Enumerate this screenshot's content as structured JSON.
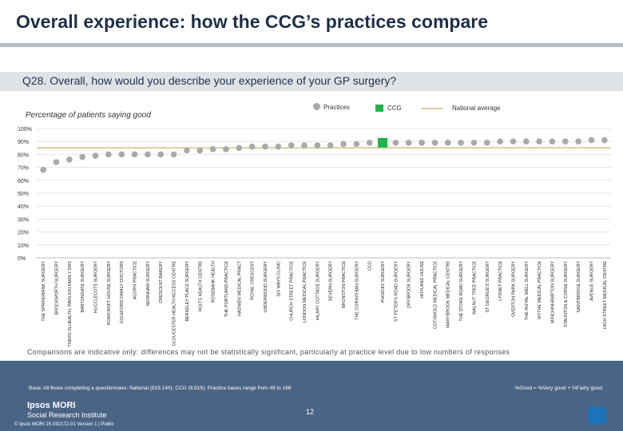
{
  "slide": {
    "title": "Overall experience: how the CCG’s practices compare",
    "question": "Q28. Overall, how would you describe your experience of your GP surgery?",
    "subtitle": "Percentage of patients saying good",
    "footnote": "Comparisons are indicative only: differences may not be statistically significant, particularly at practice level due to low numbers of responses",
    "base": "Base: All those completing a questionnaire: National (819,140); CCG (9,919); Practice bases range from 49 to 168",
    "good_definition": "%Good = %Very good + %Fairly good",
    "page_number": "12",
    "brand_name": "Ipsos MORI",
    "brand_sub": "Social Research Institute",
    "copyright": "© Ipsos MORI     15-032172-01 Version 1 | Public"
  },
  "legend": {
    "practices": "Practices",
    "ccg": "CCG",
    "national": "National average"
  },
  "colors": {
    "practice_dot": "#a9a9a9",
    "ccg": "#22b24c",
    "national_line": "#d8cfa0",
    "band": "#4a6485"
  },
  "chart_data": {
    "type": "scatter",
    "title": "Percentage of patients saying good",
    "ylabel": "",
    "ylim": [
      0,
      100
    ],
    "yticks": [
      "0%",
      "10%",
      "20%",
      "30%",
      "40%",
      "50%",
      "60%",
      "70%",
      "80%",
      "90%",
      "100%"
    ],
    "national_average": 85,
    "ccg_index": 26,
    "categories": [
      "THE SPRINGBANK SURGERY",
      "BROCKWORTH SURGERY",
      "PARTNERS IN HEALTH, PAVILION FAMILY DRS",
      "BARTONGATE SURGERY",
      "HUCCLECOTE SURGERY",
      "ROWCROFT HOUSE SURGERY",
      "COLEFORD FAMILY DOCTORS",
      "ACORN PRACTICE",
      "NEWNHAM SURGERY",
      "CRESCENT BAKERY",
      "GLOUCESTER HEALTH ACCESS CENTRE",
      "BERKELEY PLACE SURGERY",
      "HOLTS HEALTH CENTRE",
      "ROSEBANK HEALTH",
      "THE PORTLAND PRACTICE",
      "HADWEN MEDICAL PRACT",
      "ROYAL CRESCENT",
      "UNDERWOOD SURGERY",
      "SIX WAYS CLINIC",
      "CHURCH STREET PRACTICE",
      "LONDON MEDICAL PRACTICE",
      "HILARY COTTAGE SURGERY",
      "SEVERN SURGERY",
      "BRUNSTON PRACTICE",
      "THE CORINTHIAN SURGERY",
      "CCG",
      "PHOENIX SURGERY",
      "ST PETER'S ROAD SURGERY",
      "DRYBROOK SURGERY",
      "HOYLAND HOUSE",
      "COTSWOLD MEDICAL PRACTICE",
      "MARYBROOK MEDICAL CENTRE",
      "THE STOKE ROAD SURGERY",
      "WALNUT TREE PRACTICE",
      "ST GEORGE'S SURGERY",
      "LYDNEY PRACTICE",
      "OVERTON PARK SURGERY",
      "THE ROYAL WELL SURGERY",
      "MYTHE MEDICAL PRACTICE",
      "MINCHINHAMPTON SURGERY",
      "STAUNTON & CORSE SURGERY",
      "SAINTBRIDGE SURGERY",
      "AVENUE SURGERY",
      "HIGH STREET MEDICAL CENTRE"
    ],
    "values": [
      68,
      74,
      76,
      78,
      79,
      80,
      80,
      80,
      80,
      80,
      80,
      83,
      83,
      84,
      84,
      85,
      86,
      86,
      86,
      87,
      87,
      87,
      87,
      88,
      88,
      89,
      89,
      89,
      89,
      89,
      89,
      89,
      89,
      89,
      89,
      90,
      90,
      90,
      90,
      90,
      90,
      90,
      91,
      91
    ]
  }
}
